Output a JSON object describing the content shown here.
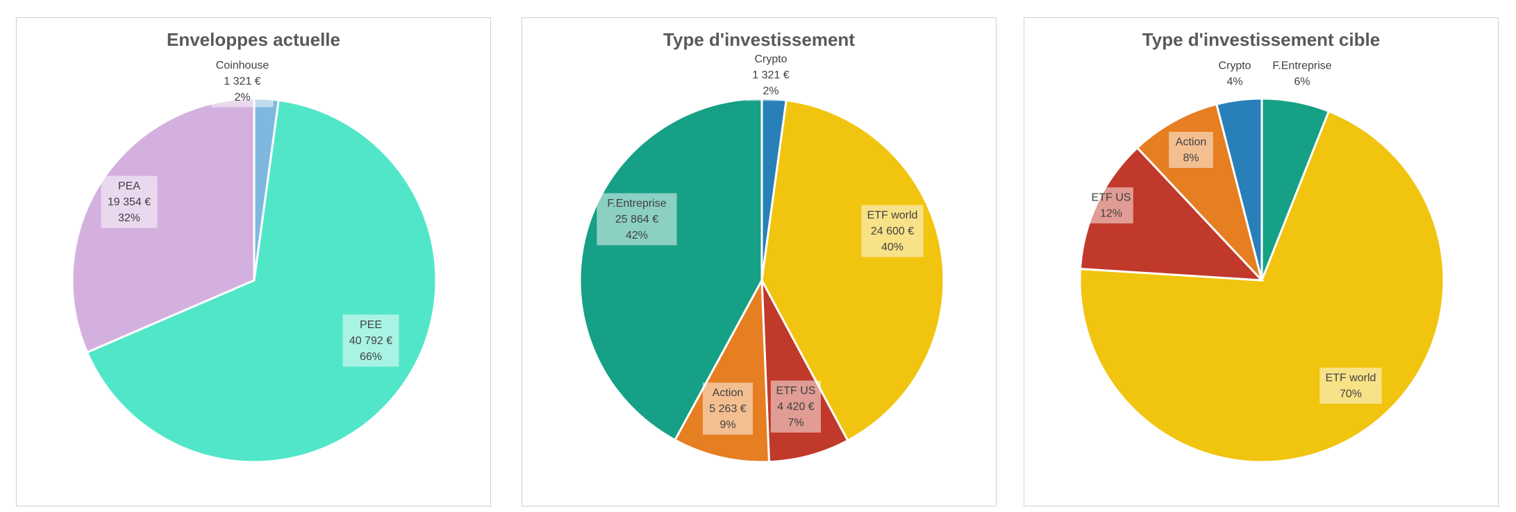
{
  "chart_data": [
    {
      "type": "pie",
      "title": "Enveloppes actuelle",
      "slices": [
        {
          "label": "Coinhouse",
          "value": 1321,
          "value_label": "1 321 €",
          "percent_label": "2%",
          "color": "#7fb8df"
        },
        {
          "label": "PEE",
          "value": 40792,
          "value_label": "40 792 €",
          "percent_label": "66%",
          "color": "#52e6c9"
        },
        {
          "label": "PEA",
          "value": 19354,
          "value_label": "19 354 €",
          "percent_label": "32%",
          "color": "#d4b0df"
        }
      ]
    },
    {
      "type": "pie",
      "title": "Type d'investissement",
      "slices": [
        {
          "label": "Crypto",
          "value": 1321,
          "value_label": "1 321 €",
          "percent_label": "2%",
          "color": "#2980b9"
        },
        {
          "label": "ETF world",
          "value": 24600,
          "value_label": "24 600 €",
          "percent_label": "40%",
          "color": "#f1c40f"
        },
        {
          "label": "ETF US",
          "value": 4420,
          "value_label": "4 420 €",
          "percent_label": "7%",
          "color": "#c0392b"
        },
        {
          "label": "Action",
          "value": 5263,
          "value_label": "5 263 €",
          "percent_label": "9%",
          "color": "#e67e22"
        },
        {
          "label": "F.Entreprise",
          "value": 25864,
          "value_label": "25 864 €",
          "percent_label": "42%",
          "color": "#16a085"
        }
      ]
    },
    {
      "type": "pie",
      "title": "Type d'investissement cible",
      "slices": [
        {
          "label": "F.Entreprise",
          "value": 6,
          "percent_label": "6%",
          "color": "#16a085"
        },
        {
          "label": "ETF world",
          "value": 70,
          "percent_label": "70%",
          "color": "#f1c40f"
        },
        {
          "label": "ETF US",
          "value": 12,
          "percent_label": "12%",
          "color": "#c0392b"
        },
        {
          "label": "Action",
          "value": 8,
          "percent_label": "8%",
          "color": "#e67e22"
        },
        {
          "label": "Crypto",
          "value": 4,
          "percent_label": "4%",
          "color": "#2980b9"
        }
      ]
    }
  ]
}
